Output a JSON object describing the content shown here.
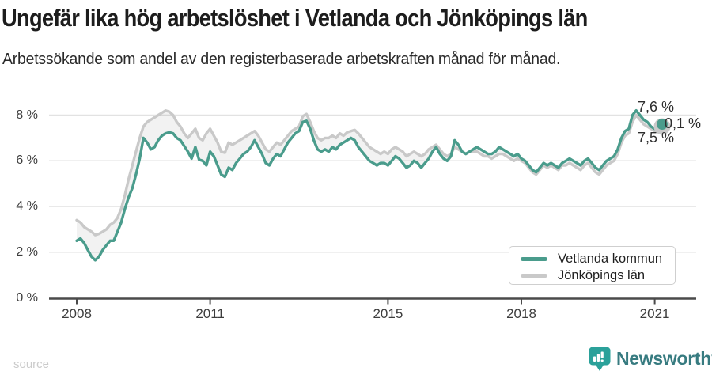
{
  "header": {
    "title": "Ungefär lika hög arbetslöshet i Vetlanda och Jönköpings län",
    "subtitle": "Arbetssökande som andel av den registerbaserade arbetskraften månad för månad."
  },
  "chart_data": {
    "type": "line",
    "x_unit": "month",
    "x_start": "2008-01",
    "x_end": "2021-03",
    "y_unit": "%",
    "ylim": [
      0,
      8.5
    ],
    "grid": true,
    "legend_position": "bottom-right-inside",
    "yticks": [
      {
        "value": 8,
        "label": "8 %"
      },
      {
        "value": 6,
        "label": "6 %"
      },
      {
        "value": 4,
        "label": "4 %"
      },
      {
        "value": 2,
        "label": "2 %"
      },
      {
        "value": 0,
        "label": "0 %"
      }
    ],
    "xticks": [
      {
        "year": 2008,
        "label": "2008"
      },
      {
        "year": 2011,
        "label": "2011"
      },
      {
        "year": 2015,
        "label": "2015"
      },
      {
        "year": 2018,
        "label": "2018"
      },
      {
        "year": 2021,
        "label": "2021"
      }
    ],
    "series": [
      {
        "name": "Vetlanda kommun",
        "color": "#4a9c8c",
        "end_value_label": "7,6 %",
        "values": [
          2.5,
          2.6,
          2.4,
          2.1,
          1.8,
          1.65,
          1.8,
          2.1,
          2.3,
          2.5,
          2.5,
          2.9,
          3.3,
          3.9,
          4.4,
          4.8,
          5.4,
          6.1,
          7.0,
          6.8,
          6.5,
          6.6,
          6.9,
          7.1,
          7.2,
          7.25,
          7.2,
          7.0,
          6.9,
          6.65,
          6.4,
          6.1,
          6.6,
          6.05,
          6.0,
          5.8,
          6.4,
          6.2,
          5.8,
          5.4,
          5.3,
          5.7,
          5.6,
          5.9,
          6.1,
          6.3,
          6.4,
          6.6,
          6.9,
          6.6,
          6.3,
          5.9,
          5.8,
          6.1,
          6.3,
          6.2,
          6.5,
          6.8,
          7.0,
          7.2,
          7.3,
          7.7,
          7.75,
          7.4,
          6.9,
          6.5,
          6.4,
          6.5,
          6.4,
          6.6,
          6.5,
          6.7,
          6.8,
          6.9,
          7.0,
          6.9,
          6.6,
          6.4,
          6.2,
          6.0,
          5.9,
          5.8,
          5.9,
          5.9,
          5.8,
          6.0,
          6.2,
          6.1,
          5.9,
          5.7,
          5.8,
          6.0,
          5.9,
          5.7,
          5.9,
          6.1,
          6.4,
          6.6,
          6.3,
          6.1,
          6.0,
          6.2,
          6.9,
          6.7,
          6.4,
          6.3,
          6.4,
          6.5,
          6.6,
          6.5,
          6.4,
          6.3,
          6.3,
          6.4,
          6.6,
          6.5,
          6.4,
          6.3,
          6.2,
          6.3,
          6.1,
          6.0,
          5.8,
          5.6,
          5.5,
          5.7,
          5.9,
          5.8,
          5.9,
          5.8,
          5.7,
          5.9,
          6.0,
          6.1,
          6.0,
          5.9,
          5.8,
          6.0,
          6.1,
          5.9,
          5.7,
          5.6,
          5.8,
          6.0,
          6.1,
          6.2,
          6.5,
          7.0,
          7.3,
          7.4,
          8.0,
          8.2,
          8.0,
          7.8,
          7.7,
          7.5,
          7.4,
          7.5,
          7.6
        ]
      },
      {
        "name": "Jönköpings län",
        "color": "#c9c9c9",
        "end_value_label": "7,5 %",
        "values": [
          3.4,
          3.3,
          3.1,
          3.0,
          2.9,
          2.75,
          2.8,
          2.9,
          3.0,
          3.2,
          3.3,
          3.5,
          3.9,
          4.5,
          5.2,
          5.8,
          6.4,
          7.0,
          7.5,
          7.7,
          7.8,
          7.9,
          8.0,
          8.1,
          8.2,
          8.15,
          8.0,
          7.7,
          7.5,
          7.2,
          7.0,
          7.2,
          7.4,
          7.0,
          6.9,
          7.2,
          7.4,
          7.1,
          6.8,
          6.4,
          6.35,
          6.8,
          6.7,
          6.8,
          6.9,
          7.0,
          7.1,
          7.2,
          7.3,
          7.1,
          6.8,
          6.5,
          6.4,
          6.6,
          6.8,
          6.7,
          6.9,
          7.1,
          7.3,
          7.4,
          7.5,
          7.95,
          8.05,
          7.7,
          7.3,
          7.0,
          6.9,
          7.0,
          7.0,
          7.1,
          7.0,
          7.2,
          7.1,
          7.25,
          7.3,
          7.35,
          7.2,
          7.0,
          6.8,
          6.6,
          6.5,
          6.4,
          6.3,
          6.4,
          6.3,
          6.5,
          6.6,
          6.5,
          6.4,
          6.2,
          6.3,
          6.4,
          6.3,
          6.2,
          6.3,
          6.5,
          6.6,
          6.7,
          6.5,
          6.3,
          6.2,
          6.3,
          6.6,
          6.5,
          6.4,
          6.3,
          6.4,
          6.4,
          6.4,
          6.3,
          6.2,
          6.2,
          6.1,
          6.2,
          6.3,
          6.3,
          6.2,
          6.1,
          6.0,
          6.1,
          6.0,
          5.9,
          5.7,
          5.5,
          5.4,
          5.6,
          5.8,
          5.7,
          5.8,
          5.7,
          5.6,
          5.8,
          5.8,
          5.9,
          5.8,
          5.7,
          5.6,
          5.8,
          5.9,
          5.7,
          5.5,
          5.4,
          5.6,
          5.8,
          5.9,
          6.0,
          6.3,
          6.8,
          7.1,
          7.2,
          7.7,
          8.0,
          7.8,
          7.6,
          7.5,
          7.4,
          7.3,
          7.4,
          7.5
        ]
      }
    ],
    "annotations": [
      {
        "text": "7,6 %"
      },
      {
        "text": "0,1 %"
      },
      {
        "text": "7,5 %"
      }
    ],
    "colors": {
      "between_fill": "rgba(0,0,0,0.05)",
      "gridline": "#e2e2e2",
      "axis": "#4a4a4a"
    }
  },
  "footer": {
    "source_label": "source",
    "brand": "Newsworthy",
    "brand_color": "#377b80",
    "brand_icon_color": "#2ba19a"
  }
}
